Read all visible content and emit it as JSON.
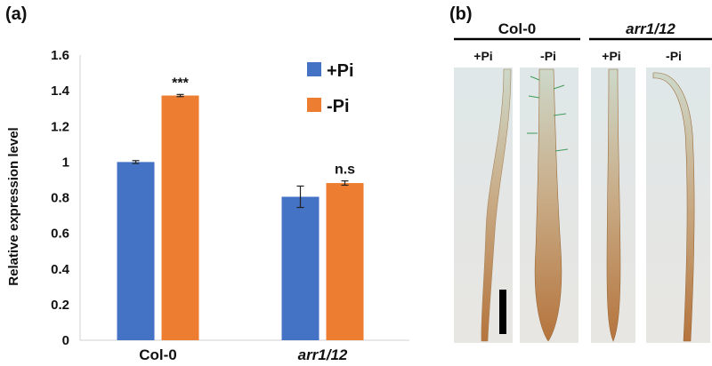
{
  "figure": {
    "panel_a_label": "(a)",
    "panel_b_label": "(b)"
  },
  "chart_data": {
    "type": "bar",
    "title": "",
    "xlabel": "",
    "ylabel": "Relative expression level",
    "ylim": [
      0,
      1.6
    ],
    "yticks": [
      "0",
      "0.2",
      "0.4",
      "0.6",
      "0.8",
      "1",
      "1.2",
      "1.4",
      "1.6"
    ],
    "categories": [
      "Col-0",
      "arr1/12"
    ],
    "series": [
      {
        "name": "+Pi",
        "color": "#4472C4",
        "values": [
          1.0,
          0.805
        ],
        "errors": [
          0.008,
          0.06
        ]
      },
      {
        "name": "-Pi",
        "color": "#ED7D31",
        "values": [
          1.373,
          0.882
        ],
        "errors": [
          0.006,
          0.012
        ]
      }
    ],
    "annotations": [
      "***",
      "n.s"
    ],
    "grid": false,
    "legend_position": "top-right"
  },
  "micrograph": {
    "groups": [
      {
        "label": "Col-0",
        "conditions": [
          "+Pi",
          "-Pi"
        ]
      },
      {
        "label": "arr1/12",
        "conditions": [
          "+Pi",
          "-Pi"
        ]
      }
    ]
  }
}
